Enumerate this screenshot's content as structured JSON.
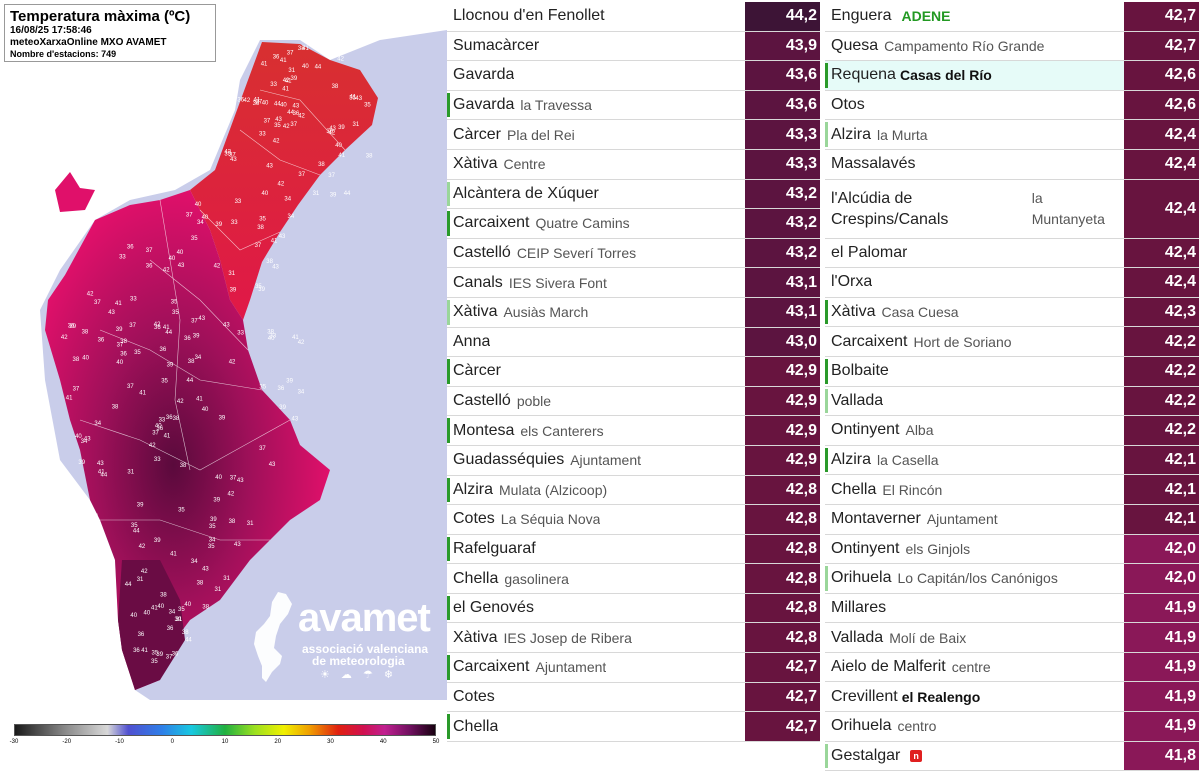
{
  "map": {
    "title": "Temperatura màxima (ºC)",
    "timestamp": "16/08/25 17:58:46",
    "source": "meteoXarxaOnline MXO AVAMET",
    "stations_count_label": "Nombre d'estacions: 749",
    "logo": {
      "name": "avamet",
      "line1": "associació valenciana",
      "line2": "de meteorologia",
      "icons": "☀ ☁ ☂ ❄"
    },
    "colorbar": {
      "ticks": [
        "-30",
        "-20",
        "-10",
        "0",
        "10",
        "20",
        "30",
        "40",
        "50"
      ],
      "min": -30,
      "max": 50
    },
    "sample_labels": [
      "34",
      "37",
      "36",
      "35",
      "33",
      "38",
      "39",
      "40",
      "41",
      "42",
      "43",
      "44",
      "37",
      "36",
      "35",
      "31",
      "38",
      "39",
      "41",
      "40",
      "42",
      "43"
    ],
    "colors": {
      "sea": "#c9cdea",
      "land_hot": "#e0106a",
      "land_very_hot": "#7a1050",
      "land_north": "#d02020",
      "land_outside": "#ffffff"
    }
  },
  "left_table": [
    {
      "town": "Llocnou d'en Fenollet",
      "sub": "",
      "temp": "44,2",
      "accent": "",
      "color": "#3d1436"
    },
    {
      "town": "Sumacàrcer",
      "sub": "",
      "temp": "43,9",
      "accent": "",
      "color": "#5c1440"
    },
    {
      "town": "Gavarda",
      "sub": "",
      "temp": "43,6",
      "accent": "",
      "color": "#5c1440"
    },
    {
      "town": "Gavarda",
      "sub": "la Travessa",
      "temp": "43,6",
      "accent": "#2a9a2a",
      "color": "#5c1440"
    },
    {
      "town": "Càrcer",
      "sub": "Pla del Rei",
      "temp": "43,3",
      "accent": "",
      "color": "#5c1440"
    },
    {
      "town": "Xàtiva",
      "sub": "Centre",
      "temp": "43,3",
      "accent": "",
      "color": "#5c1440"
    },
    {
      "town": "Alcàntera de Xúquer",
      "sub": "",
      "temp": "43,2",
      "accent": "#9ad69a",
      "color": "#5c1440"
    },
    {
      "town": "Carcaixent",
      "sub": "Quatre Camins",
      "temp": "43,2",
      "accent": "#2a9a2a",
      "color": "#5c1440"
    },
    {
      "town": "Castelló",
      "sub": "CEIP Severí Torres",
      "temp": "43,2",
      "accent": "",
      "color": "#5c1440"
    },
    {
      "town": "Canals",
      "sub": "IES Sivera Font",
      "temp": "43,1",
      "accent": "",
      "color": "#5c1440"
    },
    {
      "town": "Xàtiva",
      "sub": "Ausiàs March",
      "temp": "43,1",
      "accent": "#9ad69a",
      "color": "#5c1440"
    },
    {
      "town": "Anna",
      "sub": "",
      "temp": "43,0",
      "accent": "",
      "color": "#5c1440"
    },
    {
      "town": "Càrcer",
      "sub": "",
      "temp": "42,9",
      "accent": "#2a9a2a",
      "color": "#68143f"
    },
    {
      "town": "Castelló",
      "sub": "poble",
      "temp": "42,9",
      "accent": "",
      "color": "#68143f"
    },
    {
      "town": "Montesa",
      "sub": "els Canterers",
      "temp": "42,9",
      "accent": "#2a9a2a",
      "color": "#68143f"
    },
    {
      "town": "Guadasséquies",
      "sub": "Ajuntament",
      "temp": "42,9",
      "accent": "",
      "color": "#68143f"
    },
    {
      "town": "Alzira",
      "sub": "Mulata (Alzicoop)",
      "temp": "42,8",
      "accent": "#2a9a2a",
      "color": "#68143f"
    },
    {
      "town": "Cotes",
      "sub": "La Séquia Nova",
      "temp": "42,8",
      "accent": "",
      "color": "#68143f"
    },
    {
      "town": "Rafelguaraf",
      "sub": "",
      "temp": "42,8",
      "accent": "#2a9a2a",
      "color": "#68143f"
    },
    {
      "town": "Chella",
      "sub": "gasolinera",
      "temp": "42,8",
      "accent": "",
      "color": "#68143f"
    },
    {
      "town": "el Genovés",
      "sub": "",
      "temp": "42,8",
      "accent": "#2a9a2a",
      "color": "#68143f"
    },
    {
      "town": "Xàtiva",
      "sub": "IES Josep de Ribera",
      "temp": "42,8",
      "accent": "",
      "color": "#68143f"
    },
    {
      "town": "Carcaixent",
      "sub": "Ajuntament",
      "temp": "42,7",
      "accent": "#2a9a2a",
      "color": "#68143f"
    },
    {
      "town": "Cotes",
      "sub": "",
      "temp": "42,7",
      "accent": "",
      "color": "#68143f"
    },
    {
      "town": "Chella",
      "sub": "",
      "temp": "42,7",
      "accent": "#2a9a2a",
      "color": "#68143f"
    }
  ],
  "right_table": [
    {
      "town": "Enguera",
      "sub": "",
      "badge": "ADENE",
      "temp": "42,7",
      "accent": "",
      "color": "#68143f"
    },
    {
      "town": "Quesa",
      "sub": "Campamento Río Grande",
      "temp": "42,7",
      "accent": "",
      "color": "#68143f"
    },
    {
      "town": "Requena",
      "sub": "Casas del Río",
      "subBold": true,
      "temp": "42,6",
      "accent": "#2a9a2a",
      "color": "#68143f",
      "highlight": true
    },
    {
      "town": "Otos",
      "sub": "",
      "temp": "42,6",
      "accent": "",
      "color": "#68143f"
    },
    {
      "town": "Alzira",
      "sub": "la Murta",
      "temp": "42,4",
      "accent": "#9ad69a",
      "color": "#68143f"
    },
    {
      "town": "Massalavés",
      "sub": "",
      "temp": "42,4",
      "accent": "",
      "color": "#68143f"
    },
    {
      "town": "l'Alcúdia de Crespins/Canals",
      "sub": "la Muntanyeta",
      "temp": "42,4",
      "accent": "",
      "color": "#68143f",
      "tall": true
    },
    {
      "town": "el Palomar",
      "sub": "",
      "temp": "42,4",
      "accent": "",
      "color": "#68143f"
    },
    {
      "town": "l'Orxa",
      "sub": "",
      "temp": "42,4",
      "accent": "",
      "color": "#68143f"
    },
    {
      "town": "Xàtiva",
      "sub": "Casa Cuesa",
      "temp": "42,3",
      "accent": "#2a9a2a",
      "color": "#68143f"
    },
    {
      "town": "Carcaixent",
      "sub": "Hort de Soriano",
      "temp": "42,2",
      "accent": "",
      "color": "#68143f"
    },
    {
      "town": "Bolbaite",
      "sub": "",
      "temp": "42,2",
      "accent": "#2a9a2a",
      "color": "#68143f"
    },
    {
      "town": "Vallada",
      "sub": "",
      "temp": "42,2",
      "accent": "#9ad69a",
      "color": "#68143f"
    },
    {
      "town": "Ontinyent",
      "sub": "Alba",
      "temp": "42,2",
      "accent": "",
      "color": "#68143f"
    },
    {
      "town": "Alzira",
      "sub": "la Casella",
      "temp": "42,1",
      "accent": "#2a9a2a",
      "color": "#68143f"
    },
    {
      "town": "Chella",
      "sub": "El Rincón",
      "temp": "42,1",
      "accent": "",
      "color": "#68143f"
    },
    {
      "town": "Montaverner",
      "sub": "Ajuntament",
      "temp": "42,1",
      "accent": "",
      "color": "#68143f"
    },
    {
      "town": "Ontinyent",
      "sub": "els Ginjols",
      "temp": "42,0",
      "accent": "",
      "color": "#8a1858"
    },
    {
      "town": "Orihuela",
      "sub": "Lo Capitán/los Canónigos",
      "temp": "42,0",
      "accent": "#9ad69a",
      "color": "#8a1858"
    },
    {
      "town": "Millares",
      "sub": "",
      "temp": "41,9",
      "accent": "",
      "color": "#8a1858"
    },
    {
      "town": "Vallada",
      "sub": "Molí de Baix",
      "temp": "41,9",
      "accent": "",
      "color": "#8a1858"
    },
    {
      "town": "Aielo de Malferit",
      "sub": "centre",
      "temp": "41,9",
      "accent": "",
      "color": "#8a1858"
    },
    {
      "town": "Crevillent",
      "sub": "el Realengo",
      "subBold": true,
      "temp": "41,9",
      "accent": "",
      "color": "#8a1858"
    },
    {
      "town": "Orihuela",
      "sub": "centro",
      "temp": "41,9",
      "accent": "",
      "color": "#8a1858"
    },
    {
      "town": "Gestalgar",
      "sub": "",
      "badgeRed": "n",
      "temp": "41,8",
      "accent": "#9ad69a",
      "color": "#8a1858"
    }
  ]
}
